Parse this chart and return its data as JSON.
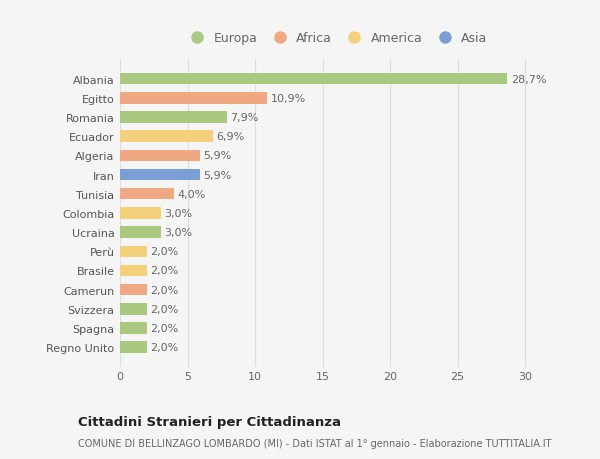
{
  "countries": [
    "Albania",
    "Egitto",
    "Romania",
    "Ecuador",
    "Algeria",
    "Iran",
    "Tunisia",
    "Colombia",
    "Ucraina",
    "Perù",
    "Brasile",
    "Camerun",
    "Svizzera",
    "Spagna",
    "Regno Unito"
  ],
  "values": [
    28.7,
    10.9,
    7.9,
    6.9,
    5.9,
    5.9,
    4.0,
    3.0,
    3.0,
    2.0,
    2.0,
    2.0,
    2.0,
    2.0,
    2.0
  ],
  "labels": [
    "28,7%",
    "10,9%",
    "7,9%",
    "6,9%",
    "5,9%",
    "5,9%",
    "4,0%",
    "3,0%",
    "3,0%",
    "2,0%",
    "2,0%",
    "2,0%",
    "2,0%",
    "2,0%",
    "2,0%"
  ],
  "continents": [
    "Europa",
    "Africa",
    "Europa",
    "America",
    "Africa",
    "Asia",
    "Africa",
    "America",
    "Europa",
    "America",
    "America",
    "Africa",
    "Europa",
    "Europa",
    "Europa"
  ],
  "continent_colors": {
    "Europa": "#a8c97f",
    "Africa": "#f0a882",
    "America": "#f5d07a",
    "Asia": "#7a9fd4"
  },
  "legend_order": [
    "Europa",
    "Africa",
    "America",
    "Asia"
  ],
  "title": "Cittadini Stranieri per Cittadinanza",
  "subtitle": "COMUNE DI BELLINZAGO LOMBARDO (MI) - Dati ISTAT al 1° gennaio - Elaborazione TUTTITALIA.IT",
  "xlim": [
    0,
    32
  ],
  "xticks": [
    0,
    5,
    10,
    15,
    20,
    25,
    30
  ],
  "background_color": "#f5f5f5",
  "bar_height": 0.6,
  "grid_color": "#dddddd",
  "label_fontsize": 8,
  "ytick_fontsize": 8,
  "xtick_fontsize": 8
}
